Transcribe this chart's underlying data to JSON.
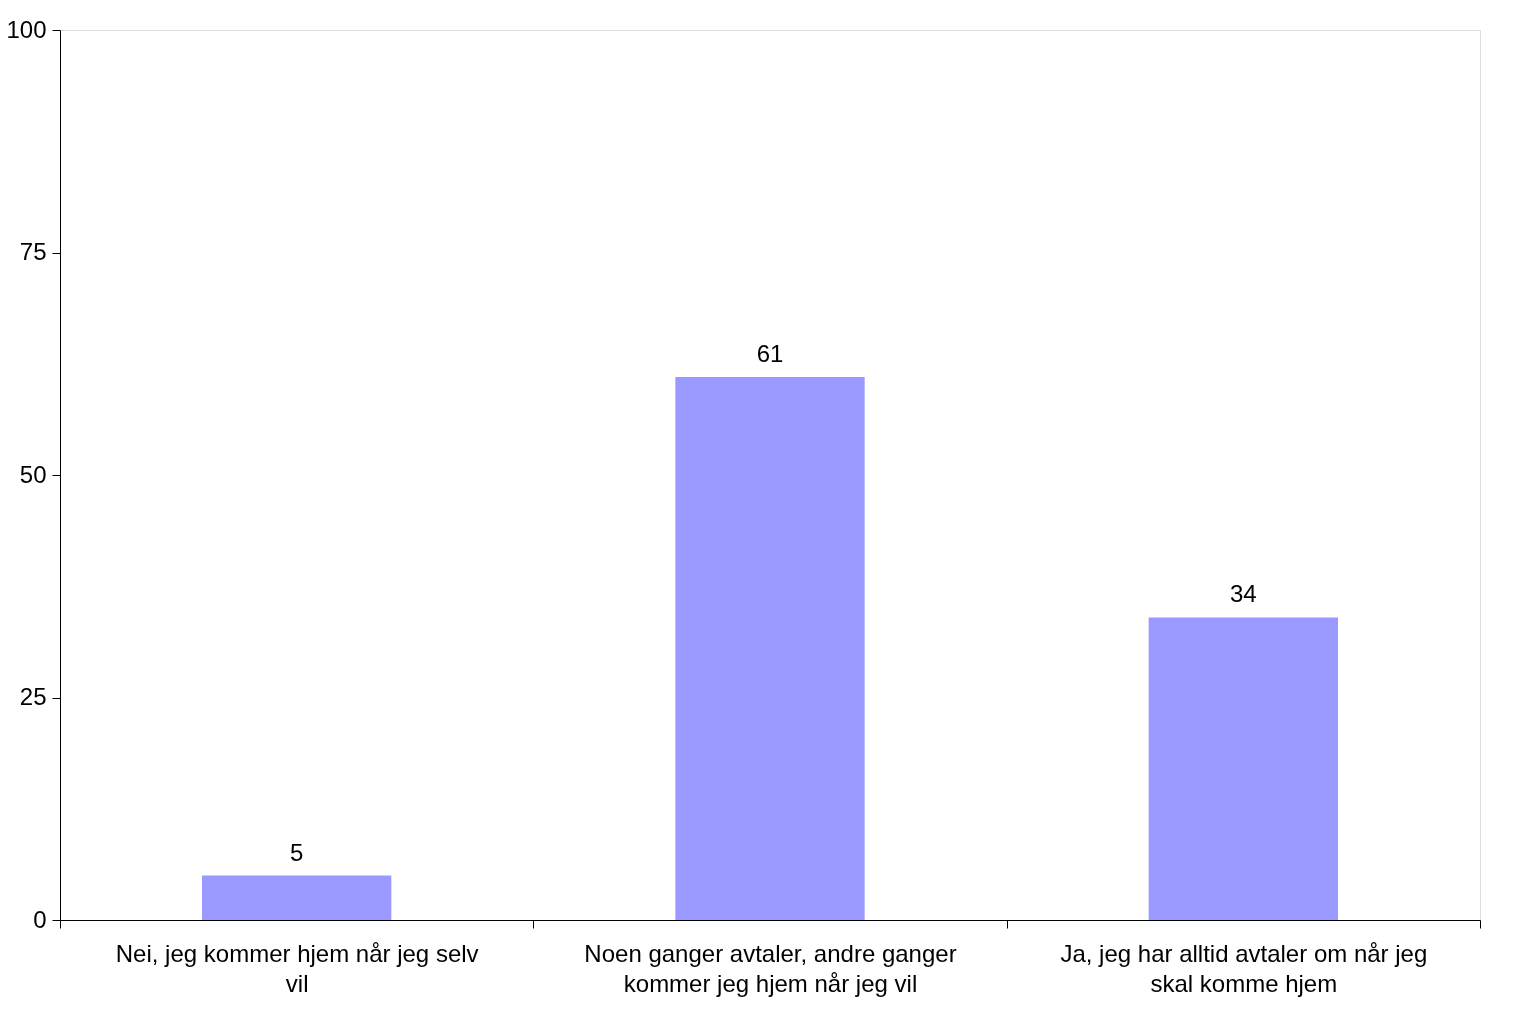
{
  "chart_data": {
    "type": "bar",
    "categories": [
      "Nei, jeg kommer hjem når jeg selv vil",
      "Noen ganger avtaler, andre ganger kommer jeg hjem når jeg vil",
      "Ja, jeg har alltid avtaler om når jeg skal komme hjem"
    ],
    "values": [
      5,
      61,
      34
    ],
    "color": "#9999ff",
    "ylim": [
      0,
      100
    ],
    "yticks": [
      0,
      25,
      50,
      75,
      100
    ],
    "data_labels": true,
    "grid": false
  }
}
